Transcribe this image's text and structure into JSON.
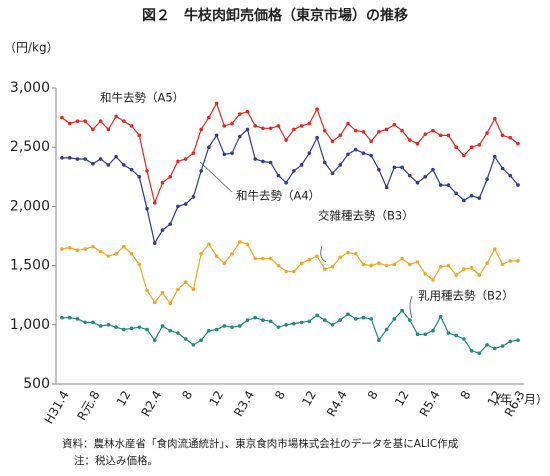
{
  "chart_data": {
    "type": "line",
    "title": "図２　牛枝肉卸売価格（東京市場）の推移",
    "y_label": "（円/kg）",
    "x_label": "（年・月）",
    "notes": [
      "資料：農林水産省「食肉流通統計」、東京食肉市場株式会社のデータを基にALIC作成",
      "注：税込み価格。"
    ],
    "categories": [
      "H31.4",
      null,
      null,
      null,
      "R元.8",
      null,
      null,
      null,
      "12",
      null,
      null,
      null,
      "R2.4",
      null,
      null,
      null,
      "8",
      null,
      null,
      null,
      "12",
      null,
      null,
      null,
      "R3.4",
      null,
      null,
      null,
      "8",
      null,
      null,
      null,
      "12",
      null,
      null,
      null,
      "R4.4",
      null,
      null,
      null,
      "8",
      null,
      null,
      null,
      "12",
      null,
      null,
      null,
      "R5.4",
      null,
      null,
      null,
      "8",
      null,
      null,
      null,
      "12",
      null,
      null,
      "R6.3"
    ],
    "ylim": [
      500,
      3000
    ],
    "yticks": [
      500,
      {
        "value": 1000,
        "label": "1,000"
      },
      {
        "value": 1500,
        "label": "1,500"
      },
      {
        "value": 2000,
        "label": "2,000"
      },
      {
        "value": 2500,
        "label": "2,500"
      },
      {
        "value": 3000,
        "label": "3,000"
      }
    ],
    "grid": false,
    "series": [
      {
        "name": "和牛去勢（A5）",
        "color": "#e8251f",
        "values": [
          2750,
          2700,
          2720,
          2720,
          2650,
          2720,
          2650,
          2760,
          2720,
          2680,
          2600,
          2300,
          2030,
          2200,
          2250,
          2380,
          2400,
          2450,
          2650,
          2750,
          2870,
          2680,
          2700,
          2780,
          2800,
          2680,
          2660,
          2660,
          2680,
          2560,
          2650,
          2680,
          2700,
          2820,
          2640,
          2550,
          2600,
          2700,
          2640,
          2630,
          2550,
          2630,
          2650,
          2690,
          2640,
          2560,
          2530,
          2610,
          2640,
          2600,
          2600,
          2500,
          2430,
          2500,
          2520,
          2620,
          2740,
          2600,
          2580,
          2530
        ]
      },
      {
        "name": "和牛去勢（A4）",
        "color": "#2e3d8f",
        "values": [
          2410,
          2410,
          2400,
          2400,
          2360,
          2400,
          2350,
          2420,
          2350,
          2310,
          2250,
          1980,
          1690,
          1800,
          1850,
          2000,
          2020,
          2080,
          2300,
          2500,
          2600,
          2440,
          2450,
          2590,
          2650,
          2400,
          2380,
          2370,
          2260,
          2200,
          2300,
          2350,
          2450,
          2580,
          2370,
          2280,
          2350,
          2440,
          2480,
          2450,
          2430,
          2310,
          2160,
          2330,
          2330,
          2260,
          2200,
          2250,
          2310,
          2180,
          2180,
          2110,
          2050,
          2090,
          2070,
          2230,
          2420,
          2320,
          2260,
          2180
        ]
      },
      {
        "name": "交雑種去勢（B3）",
        "color": "#f5a623",
        "values": [
          1640,
          1650,
          1630,
          1640,
          1660,
          1620,
          1580,
          1600,
          1660,
          1600,
          1510,
          1290,
          1190,
          1270,
          1180,
          1300,
          1360,
          1300,
          1600,
          1680,
          1580,
          1520,
          1600,
          1700,
          1680,
          1560,
          1560,
          1560,
          1500,
          1450,
          1450,
          1520,
          1550,
          1580,
          1470,
          1490,
          1570,
          1610,
          1600,
          1510,
          1500,
          1520,
          1500,
          1510,
          1560,
          1510,
          1530,
          1430,
          1380,
          1490,
          1500,
          1420,
          1470,
          1480,
          1420,
          1520,
          1640,
          1510,
          1540,
          1540
        ]
      },
      {
        "name": "乳用種去勢（B2）",
        "color": "#1f8a80",
        "values": [
          1060,
          1060,
          1050,
          1020,
          1020,
          990,
          1000,
          980,
          960,
          970,
          980,
          960,
          870,
          990,
          950,
          930,
          880,
          830,
          870,
          950,
          960,
          990,
          980,
          990,
          1040,
          1060,
          1040,
          1030,
          980,
          1000,
          1010,
          1020,
          1030,
          1080,
          1040,
          1000,
          1040,
          1090,
          1050,
          1060,
          1050,
          870,
          960,
          1050,
          1120,
          1040,
          920,
          920,
          950,
          1070,
          930,
          910,
          880,
          780,
          760,
          830,
          800,
          820,
          860,
          870
        ]
      }
    ]
  }
}
